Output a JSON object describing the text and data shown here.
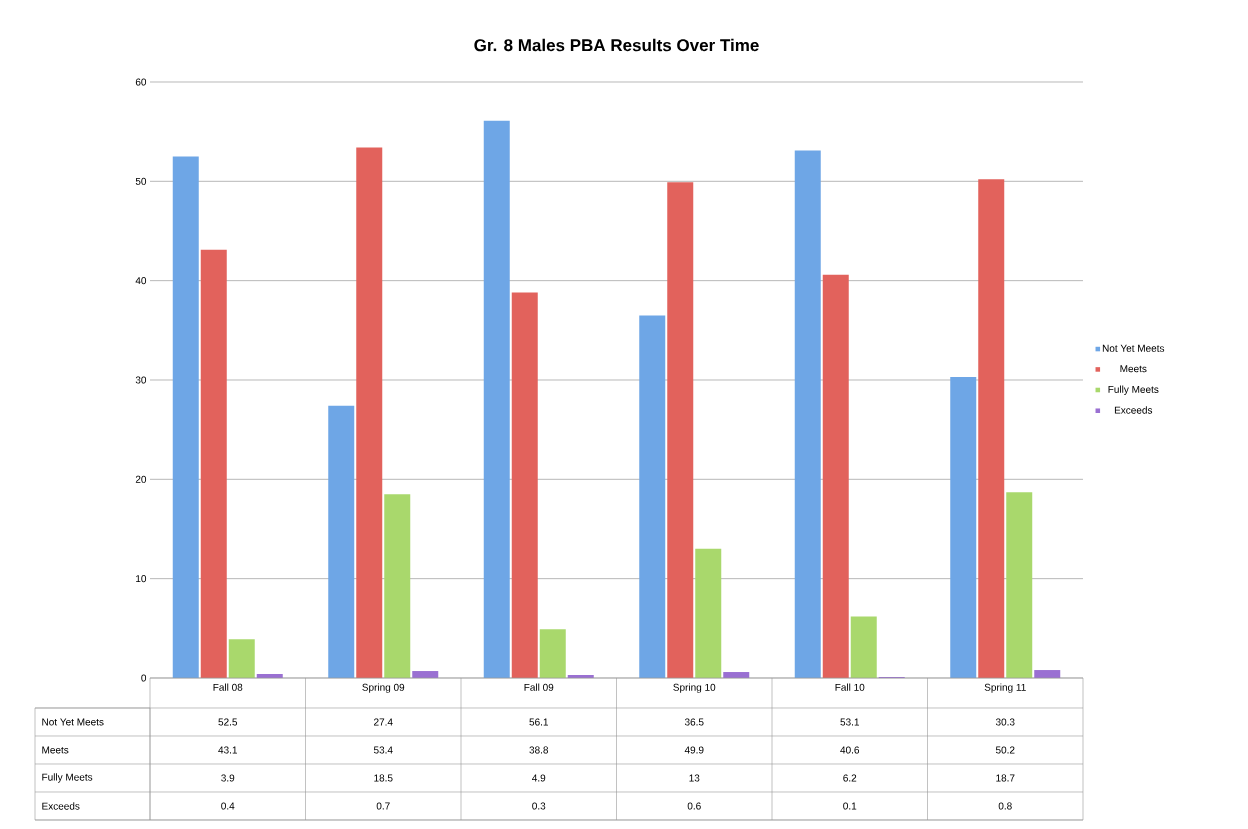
{
  "chart_data": {
    "type": "bar",
    "title": "Gr. 8 Males  PBA Results Over Time",
    "categories": [
      "Fall 08",
      "Spring 09",
      "Fall 09",
      "Spring 10",
      "Fall 10",
      "Spring 11"
    ],
    "series": [
      {
        "name": "Not Yet Meets",
        "color": "#6ea6e6",
        "values": [
          52.5,
          27.4,
          56.1,
          36.5,
          53.1,
          30.3
        ],
        "value_labels": [
          "52.5",
          "27.4",
          "56.1",
          "36.5",
          "53.1",
          "30.3"
        ]
      },
      {
        "name": "Meets",
        "color": "#e2625c",
        "values": [
          43.1,
          53.4,
          38.8,
          49.9,
          40.6,
          50.2
        ],
        "value_labels": [
          "43.1",
          "53.4",
          "38.8",
          "49.9",
          "40.6",
          "50.2"
        ]
      },
      {
        "name": "Fully Meets",
        "color": "#a9d86c",
        "values": [
          3.9,
          18.5,
          4.9,
          13,
          6.2,
          18.7
        ],
        "value_labels": [
          "3.9",
          "18.5",
          "4.9",
          "13",
          "6.2",
          "18.7"
        ]
      },
      {
        "name": "Exceeds",
        "color": "#9a70d2",
        "values": [
          0.4,
          0.7,
          0.3,
          0.6,
          0.1,
          0.8
        ],
        "value_labels": [
          "0.4",
          "0.7",
          "0.3",
          "0.6",
          "0.1",
          "0.8"
        ]
      }
    ],
    "ylim": [
      0,
      60
    ],
    "yticks": [
      0,
      10,
      20,
      30,
      40,
      50,
      60
    ],
    "grid": "y",
    "legend": "right"
  }
}
